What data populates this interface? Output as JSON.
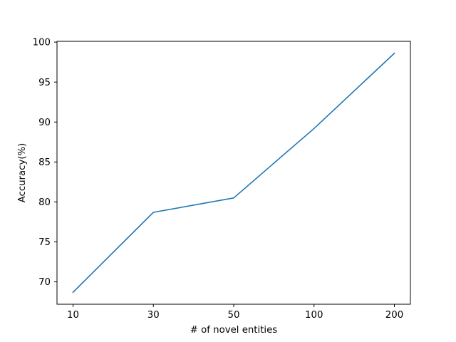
{
  "chart_data": {
    "type": "line",
    "title": "",
    "xlabel": "# of novel entities",
    "ylabel": "Accuracy(%)",
    "categories": [
      "10",
      "30",
      "50",
      "100",
      "200"
    ],
    "series": [
      {
        "values": [
          68.7,
          78.7,
          80.5,
          89.2,
          98.6
        ],
        "color": "#1f77b4"
      }
    ],
    "ylim": [
      67.2,
      100.1
    ],
    "yticks": [
      70,
      75,
      80,
      85,
      90,
      95,
      100
    ],
    "grid": false,
    "legend": "none"
  }
}
